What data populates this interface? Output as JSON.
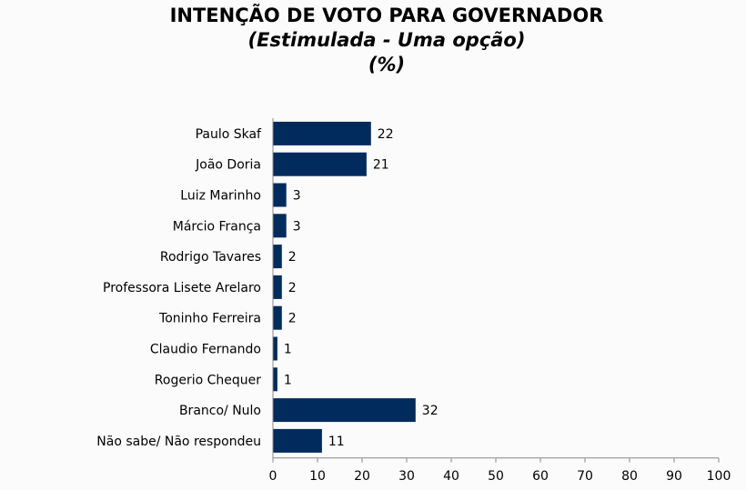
{
  "title": "INTENÇÃO DE VOTO PARA GOVERNADOR",
  "subtitle": "(Estimulada - Uma opção)",
  "unit_label": "(%)",
  "colors": {
    "bar": "#002b5c",
    "axis": "#888888"
  },
  "chart_data": {
    "type": "bar",
    "orientation": "horizontal",
    "categories": [
      "Paulo Skaf",
      "João Doria",
      "Luiz Marinho",
      "Márcio França",
      "Rodrigo Tavares",
      "Professora Lisete Arelaro",
      "Toninho Ferreira",
      "Claudio Fernando",
      "Rogerio Chequer",
      "Branco/ Nulo",
      "Não sabe/ Não respondeu"
    ],
    "values": [
      22,
      21,
      3,
      3,
      2,
      2,
      2,
      1,
      1,
      32,
      11
    ],
    "xlim": [
      0,
      100
    ],
    "xticks": [
      0,
      10,
      20,
      30,
      40,
      50,
      60,
      70,
      80,
      90,
      100
    ],
    "grid": false,
    "legend": "none"
  }
}
